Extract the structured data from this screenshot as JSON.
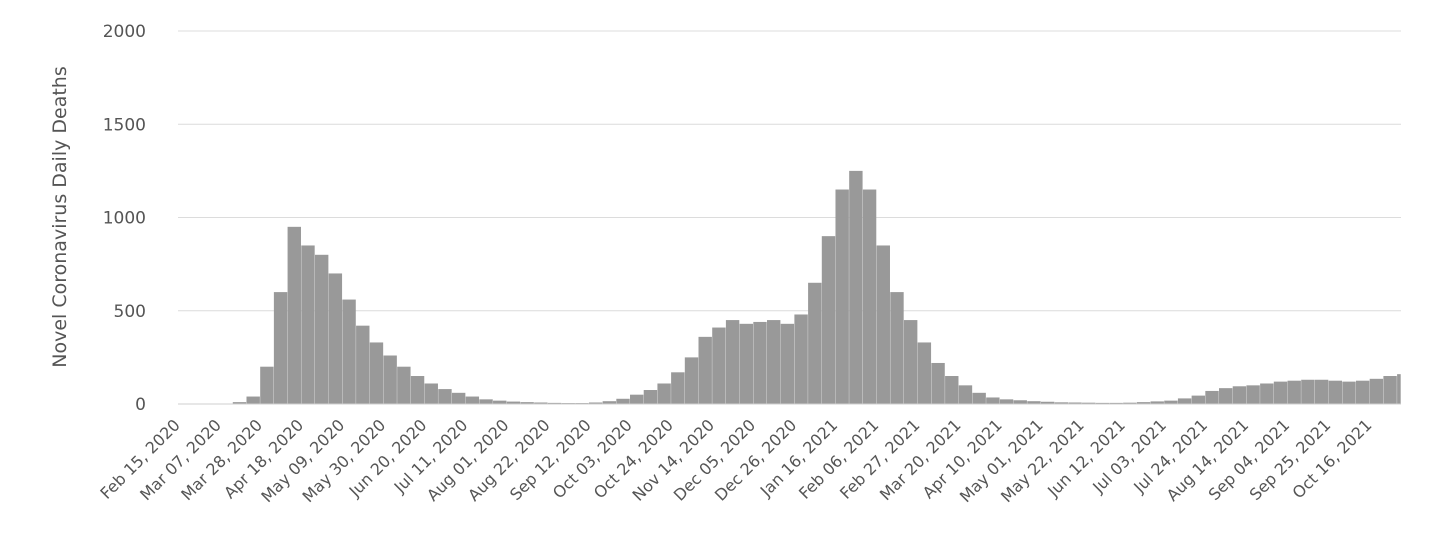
{
  "chart_data": {
    "type": "bar",
    "title": "",
    "xlabel": "",
    "ylabel": "Novel Coronavirus Daily Deaths",
    "ylim": [
      0,
      2000
    ],
    "yticks": [
      0,
      500,
      1000,
      1500,
      2000
    ],
    "x_start": "2020-02-15",
    "x_end": "2021-10-31",
    "x_tick_labels": [
      "Feb 15, 2020",
      "Mar 07, 2020",
      "Mar 28, 2020",
      "Apr 18, 2020",
      "May 09, 2020",
      "May 30, 2020",
      "Jun 20, 2020",
      "Jul 11, 2020",
      "Aug 01, 2020",
      "Aug 22, 2020",
      "Sep 12, 2020",
      "Oct 03, 2020",
      "Oct 24, 2020",
      "Nov 14, 2020",
      "Dec 05, 2020",
      "Dec 26, 2020",
      "Jan 16, 2021",
      "Feb 06, 2021",
      "Feb 27, 2021",
      "Mar 20, 2021",
      "Apr 10, 2021",
      "May 01, 2021",
      "May 22, 2021",
      "Jun 12, 2021",
      "Jul 03, 2021",
      "Jul 24, 2021",
      "Aug 14, 2021",
      "Sep 04, 2021",
      "Sep 25, 2021",
      "Oct 16, 2021"
    ],
    "bar_color": "#999999",
    "grid": true,
    "series": [
      {
        "values_by_week": [
          [
            "2020-02-15",
            0
          ],
          [
            "2020-02-22",
            0
          ],
          [
            "2020-02-29",
            1
          ],
          [
            "2020-03-07",
            2
          ],
          [
            "2020-03-14",
            10
          ],
          [
            "2020-03-21",
            40
          ],
          [
            "2020-03-28",
            200
          ],
          [
            "2020-04-04",
            600
          ],
          [
            "2020-04-11",
            950
          ],
          [
            "2020-04-18",
            850
          ],
          [
            "2020-04-25",
            800
          ],
          [
            "2020-05-02",
            700
          ],
          [
            "2020-05-09",
            560
          ],
          [
            "2020-05-16",
            420
          ],
          [
            "2020-05-23",
            330
          ],
          [
            "2020-05-30",
            260
          ],
          [
            "2020-06-06",
            200
          ],
          [
            "2020-06-13",
            150
          ],
          [
            "2020-06-20",
            110
          ],
          [
            "2020-06-27",
            80
          ],
          [
            "2020-07-04",
            60
          ],
          [
            "2020-07-11",
            40
          ],
          [
            "2020-07-18",
            25
          ],
          [
            "2020-07-25",
            18
          ],
          [
            "2020-08-01",
            13
          ],
          [
            "2020-08-08",
            10
          ],
          [
            "2020-08-15",
            8
          ],
          [
            "2020-08-22",
            6
          ],
          [
            "2020-08-29",
            5
          ],
          [
            "2020-09-05",
            5
          ],
          [
            "2020-09-12",
            8
          ],
          [
            "2020-09-19",
            15
          ],
          [
            "2020-09-26",
            28
          ],
          [
            "2020-10-03",
            50
          ],
          [
            "2020-10-10",
            75
          ],
          [
            "2020-10-17",
            110
          ],
          [
            "2020-10-24",
            170
          ],
          [
            "2020-10-31",
            250
          ],
          [
            "2020-11-07",
            360
          ],
          [
            "2020-11-14",
            410
          ],
          [
            "2020-11-21",
            450
          ],
          [
            "2020-11-28",
            430
          ],
          [
            "2020-12-05",
            440
          ],
          [
            "2020-12-12",
            450
          ],
          [
            "2020-12-19",
            430
          ],
          [
            "2020-12-26",
            480
          ],
          [
            "2021-01-02",
            650
          ],
          [
            "2021-01-09",
            900
          ],
          [
            "2021-01-16",
            1150
          ],
          [
            "2021-01-23",
            1250
          ],
          [
            "2021-01-30",
            1150
          ],
          [
            "2021-02-06",
            850
          ],
          [
            "2021-02-13",
            600
          ],
          [
            "2021-02-20",
            450
          ],
          [
            "2021-02-27",
            330
          ],
          [
            "2021-03-06",
            220
          ],
          [
            "2021-03-13",
            150
          ],
          [
            "2021-03-20",
            100
          ],
          [
            "2021-03-27",
            60
          ],
          [
            "2021-04-03",
            35
          ],
          [
            "2021-04-10",
            25
          ],
          [
            "2021-04-17",
            20
          ],
          [
            "2021-04-24",
            15
          ],
          [
            "2021-05-01",
            12
          ],
          [
            "2021-05-08",
            9
          ],
          [
            "2021-05-15",
            8
          ],
          [
            "2021-05-22",
            7
          ],
          [
            "2021-05-29",
            6
          ],
          [
            "2021-06-05",
            6
          ],
          [
            "2021-06-12",
            7
          ],
          [
            "2021-06-19",
            10
          ],
          [
            "2021-06-26",
            14
          ],
          [
            "2021-07-03",
            18
          ],
          [
            "2021-07-10",
            30
          ],
          [
            "2021-07-17",
            45
          ],
          [
            "2021-07-24",
            70
          ],
          [
            "2021-07-31",
            85
          ],
          [
            "2021-08-07",
            95
          ],
          [
            "2021-08-14",
            100
          ],
          [
            "2021-08-21",
            110
          ],
          [
            "2021-08-28",
            120
          ],
          [
            "2021-09-04",
            125
          ],
          [
            "2021-09-11",
            130
          ],
          [
            "2021-09-18",
            130
          ],
          [
            "2021-09-25",
            125
          ],
          [
            "2021-10-02",
            120
          ],
          [
            "2021-10-09",
            125
          ],
          [
            "2021-10-16",
            135
          ],
          [
            "2021-10-23",
            150
          ],
          [
            "2021-10-30",
            160
          ]
        ]
      }
    ]
  }
}
